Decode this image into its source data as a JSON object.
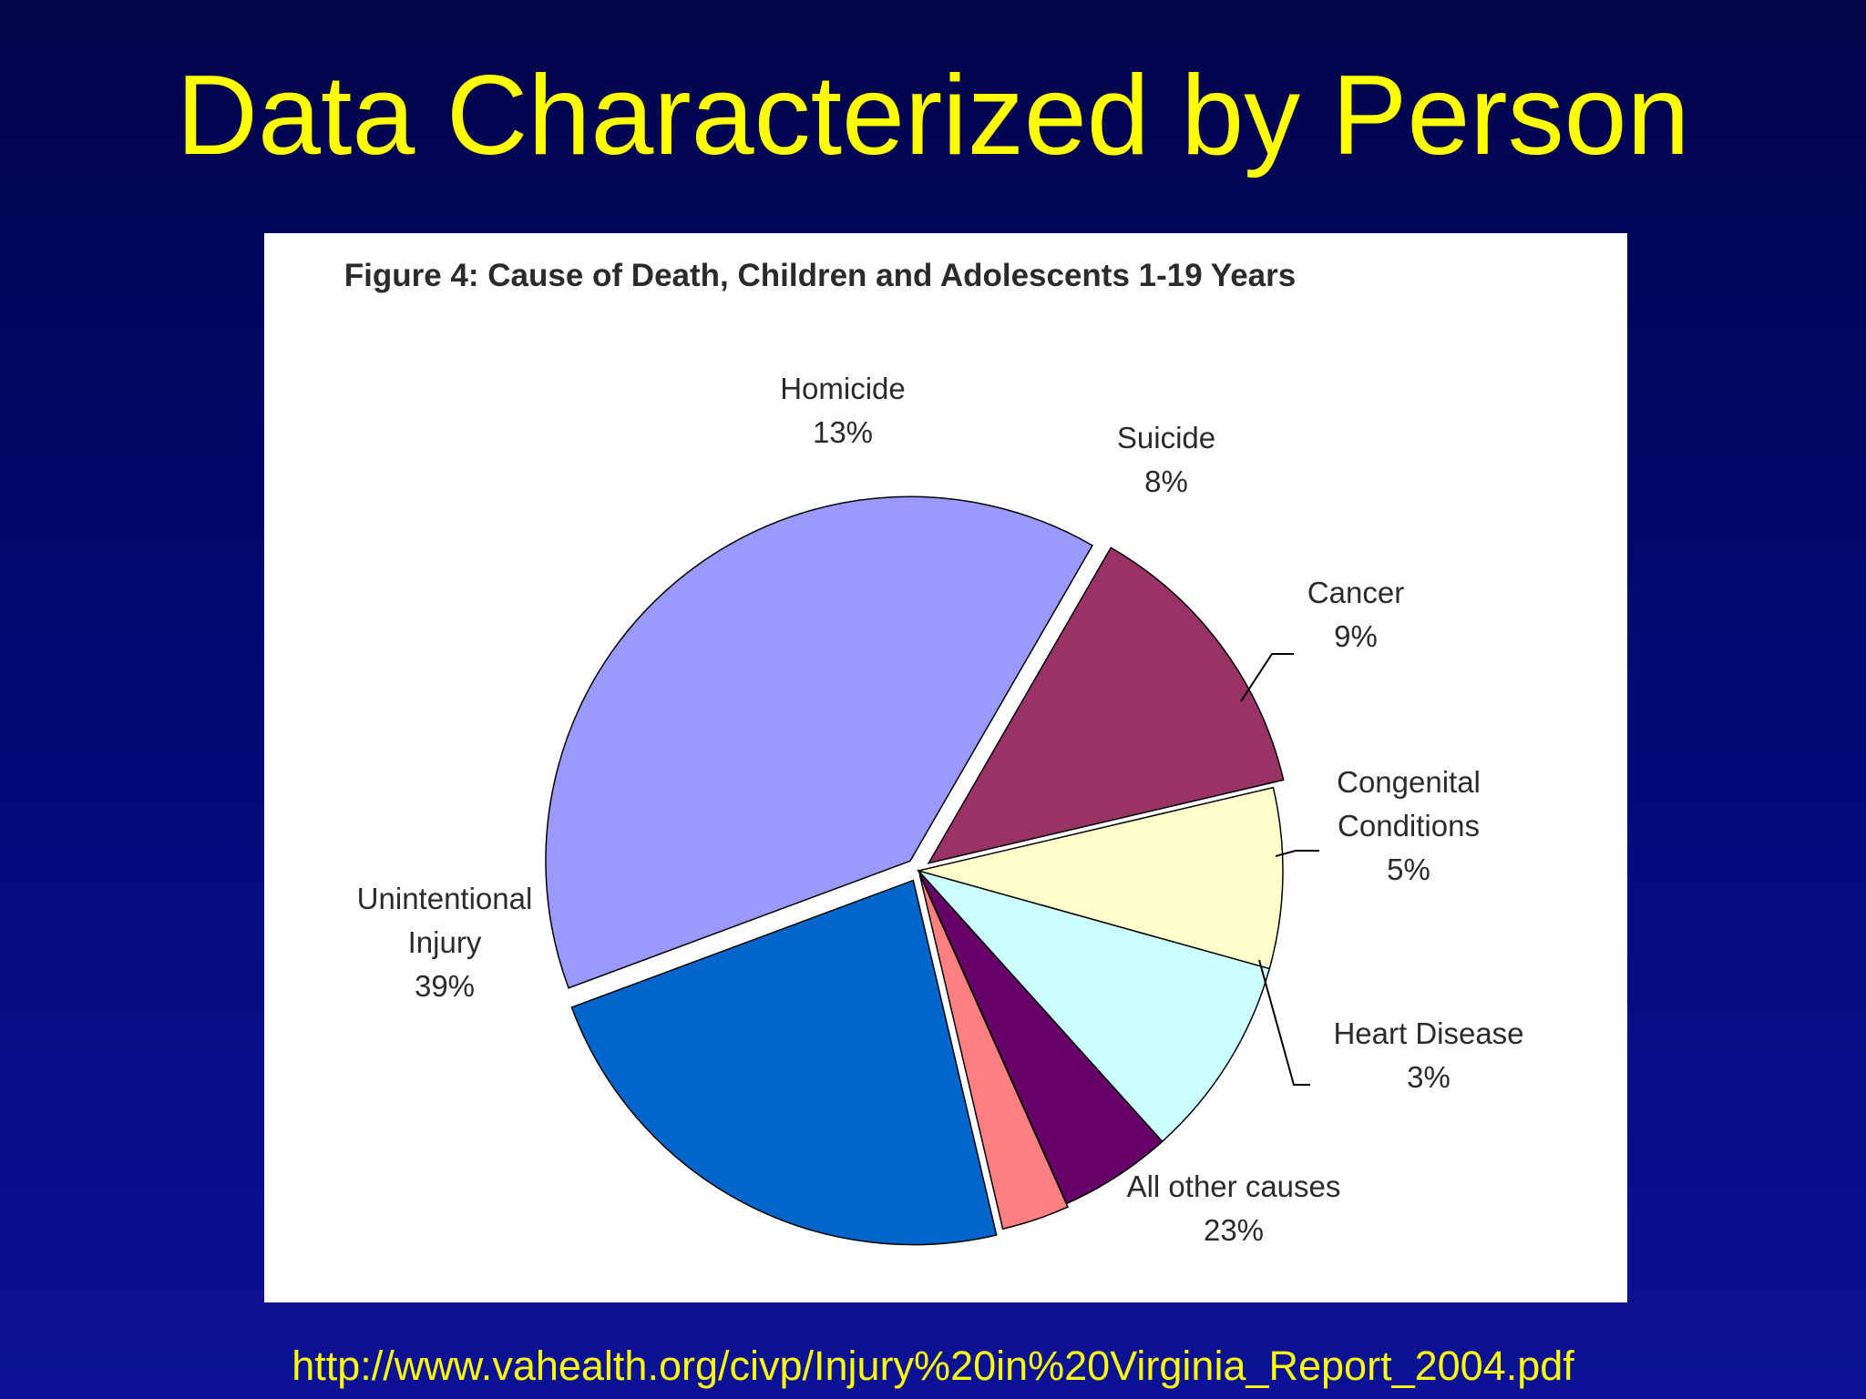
{
  "slide": {
    "title": "Data Characterized by Person",
    "source_url": "http://www.vahealth.org/civp/Injury%20in%20Virginia_Report_2004.pdf",
    "background_color": "#020a7a",
    "title_color": "#ffff00"
  },
  "chart_data": {
    "type": "pie",
    "title": "Figure 4: Cause of Death, Children and Adolescents 1-19 Years",
    "legend": false,
    "slices": [
      {
        "label": "Homicide",
        "value": 13,
        "value_label": "13%",
        "color": "#993366"
      },
      {
        "label": "Suicide",
        "value": 8,
        "value_label": "8%",
        "color": "#ffffcc"
      },
      {
        "label": "Cancer",
        "value": 9,
        "value_label": "9%",
        "color": "#ccffff"
      },
      {
        "label": "Congenital Conditions",
        "value": 5,
        "value_label": "5%",
        "color": "#660066"
      },
      {
        "label": "Heart Disease",
        "value": 3,
        "value_label": "3%",
        "color": "#ff8080"
      },
      {
        "label": "All other causes",
        "value": 23,
        "value_label": "23%",
        "color": "#0066cc"
      },
      {
        "label": "Unintentional Injury",
        "value": 39,
        "value_label": "39%",
        "color": "#9999ff"
      }
    ]
  }
}
